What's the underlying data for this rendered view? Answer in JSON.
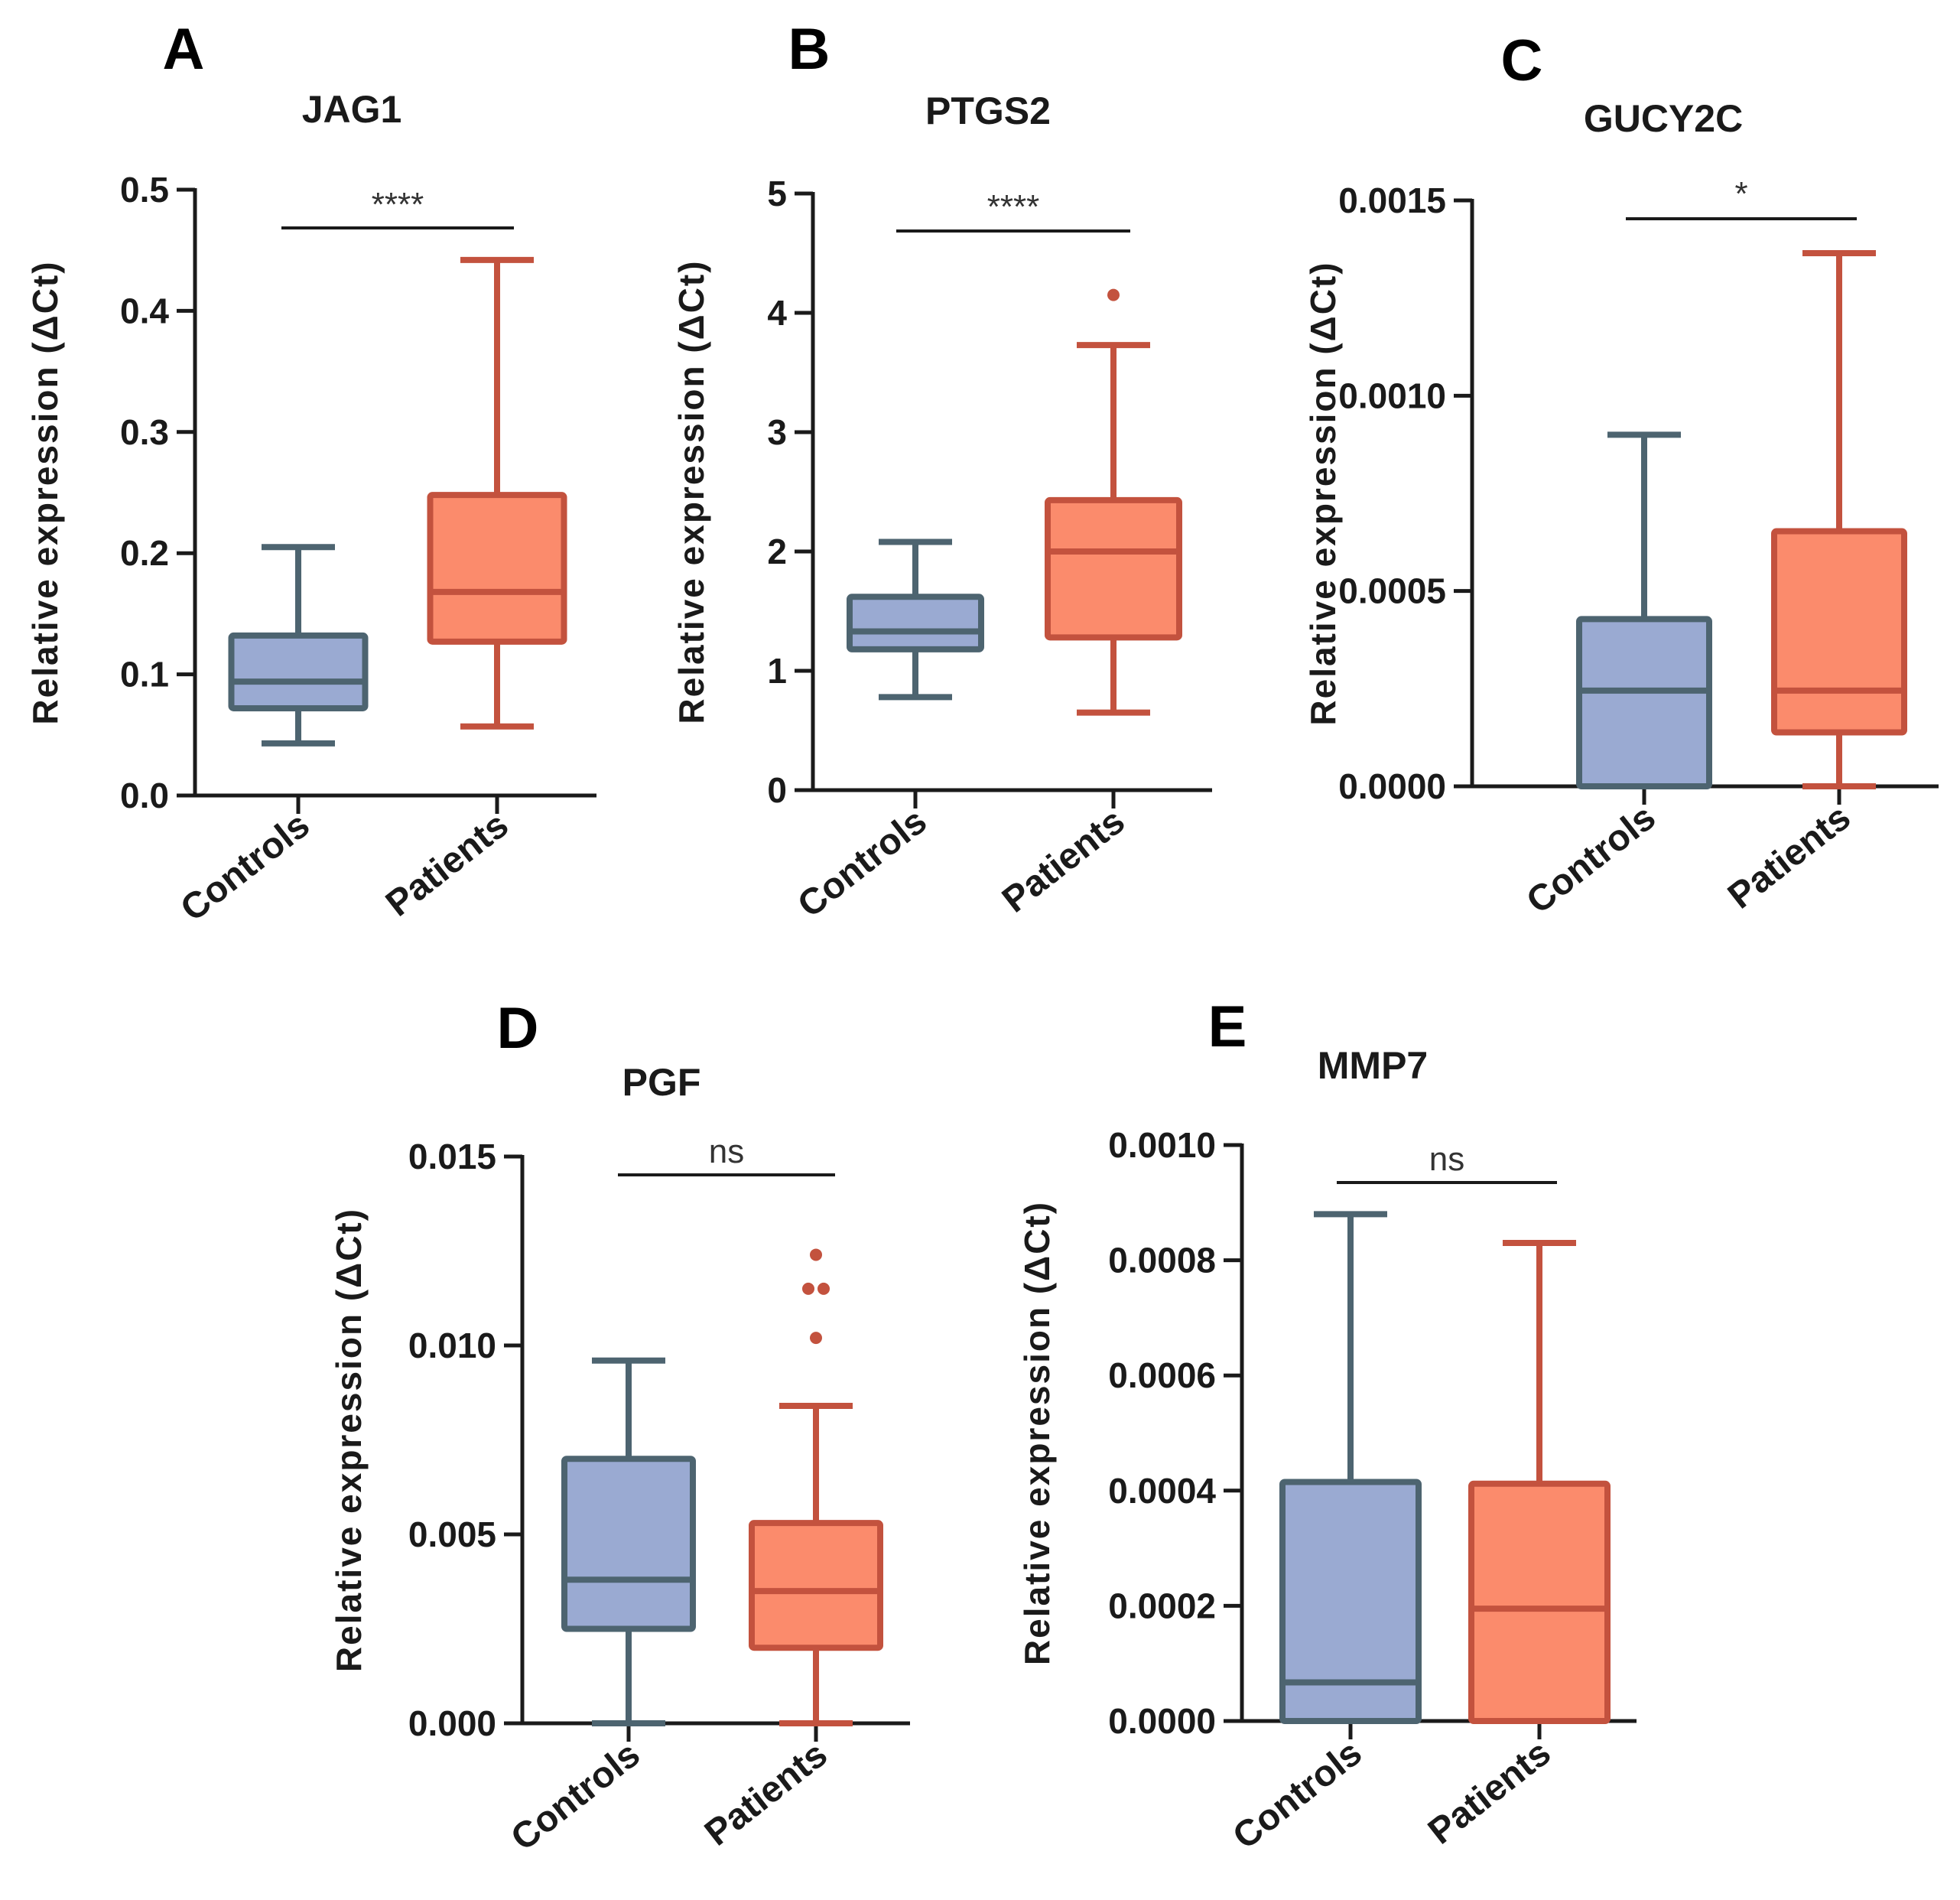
{
  "colors": {
    "controls_fill": "#9aaad2",
    "controls_stroke": "#4d6470",
    "patients_fill": "#fb8b6c",
    "patients_stroke": "#c3523e",
    "outlier": "#c3523e",
    "axis": "#1a1a1a"
  },
  "chart_data": [
    {
      "type": "box",
      "panel": "A",
      "title": "JAG1",
      "ylabel": "Relative expression (ΔCt)",
      "ylim": [
        0,
        0.5
      ],
      "yticks": [
        "0.0",
        "0.1",
        "0.2",
        "0.3",
        "0.4",
        "0.5"
      ],
      "categories": [
        "Controls",
        "Patients"
      ],
      "series": [
        {
          "name": "Controls",
          "min": 0.043,
          "q1": 0.072,
          "median": 0.094,
          "q3": 0.132,
          "max": 0.205,
          "outliers": []
        },
        {
          "name": "Patients",
          "min": 0.057,
          "q1": 0.127,
          "median": 0.168,
          "q3": 0.248,
          "max": 0.442,
          "outliers": []
        }
      ],
      "significance": "****"
    },
    {
      "type": "box",
      "panel": "B",
      "title": "PTGS2",
      "ylabel": "Relative expression (ΔCt)",
      "ylim": [
        0,
        5
      ],
      "yticks": [
        "0",
        "1",
        "2",
        "3",
        "4",
        "5"
      ],
      "categories": [
        "Controls",
        "Patients"
      ],
      "series": [
        {
          "name": "Controls",
          "min": 0.78,
          "q1": 1.18,
          "median": 1.33,
          "q3": 1.62,
          "max": 2.08,
          "outliers": []
        },
        {
          "name": "Patients",
          "min": 0.65,
          "q1": 1.28,
          "median": 2.0,
          "q3": 2.43,
          "max": 3.73,
          "outliers": [
            4.15
          ]
        }
      ],
      "significance": "****"
    },
    {
      "type": "box",
      "panel": "C",
      "title": "GUCY2C",
      "ylabel": "Relative expression (ΔCt)",
      "ylim": [
        0,
        0.0015
      ],
      "yticks": [
        "0.0000",
        "0.0005",
        "0.0010",
        "0.0015"
      ],
      "categories": [
        "Controls",
        "Patients"
      ],
      "series": [
        {
          "name": "Controls",
          "min": 0.0,
          "q1": 0.0,
          "median": 0.000245,
          "q3": 0.000428,
          "max": 0.0009,
          "outliers": []
        },
        {
          "name": "Patients",
          "min": 0.0,
          "q1": 0.000138,
          "median": 0.000245,
          "q3": 0.000653,
          "max": 0.001365,
          "outliers": []
        }
      ],
      "significance": "*"
    },
    {
      "type": "box",
      "panel": "D",
      "title": "PGF",
      "ylabel": "Relative expression (ΔCt)",
      "ylim": [
        0,
        0.015
      ],
      "yticks": [
        "0.000",
        "0.005",
        "0.010",
        "0.015"
      ],
      "categories": [
        "Controls",
        "Patients"
      ],
      "series": [
        {
          "name": "Controls",
          "min": 0.0,
          "q1": 0.0025,
          "median": 0.0038,
          "q3": 0.007,
          "max": 0.0096,
          "outliers": []
        },
        {
          "name": "Patients",
          "min": 0.0,
          "q1": 0.002,
          "median": 0.0035,
          "q3": 0.0053,
          "max": 0.0084,
          "outliers": [
            0.0102,
            0.0115,
            0.0115,
            0.0124
          ]
        }
      ],
      "significance": "ns"
    },
    {
      "type": "box",
      "panel": "E",
      "title": "MMP7",
      "ylabel": "Relative expression (ΔCt)",
      "ylim": [
        0,
        0.001
      ],
      "yticks": [
        "0.0000",
        "0.0002",
        "0.0004",
        "0.0006",
        "0.0008",
        "0.0010"
      ],
      "categories": [
        "Controls",
        "Patients"
      ],
      "series": [
        {
          "name": "Controls",
          "min": 0.0,
          "q1": 0.0,
          "median": 6.7e-05,
          "q3": 0.000415,
          "max": 0.00088,
          "outliers": []
        },
        {
          "name": "Patients",
          "min": 0.0,
          "q1": 0.0,
          "median": 0.000195,
          "q3": 0.000412,
          "max": 0.00083,
          "outliers": []
        }
      ],
      "significance": "ns"
    }
  ]
}
